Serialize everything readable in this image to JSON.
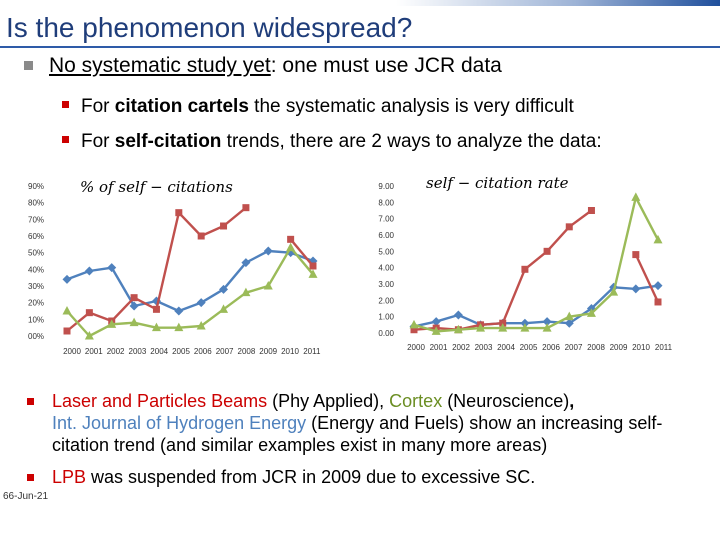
{
  "colors": {
    "title": "#1F3D7A",
    "accent_red": "#CC0000",
    "green": "#6B8E23",
    "blue": "#4F81BD",
    "red_series": "#C0504D",
    "green_series": "#9BBB59"
  },
  "slide": {
    "title": "Is the phenomenon widespread?",
    "bullet1": {
      "bold": "No systematic study yet",
      "rest": ": one must use JCR data"
    },
    "sub1": {
      "pre": "For ",
      "bold": "citation cartels",
      "rest": " the systematic analysis is very difficult"
    },
    "sub2": {
      "pre": "For ",
      "bold": "self-citation",
      "rest": "  trends, there are 2 ways to analyze the data:"
    },
    "bullet2": {
      "p1": "Laser and Particles Beams",
      "p2": " (Phy Applied), ",
      "p3": "Cortex",
      "p4": " (Neuroscience)",
      "p5": ",",
      "p6": "Int. Journal of Hydrogen Energy",
      "p7": " (Energy and Fuels) show an increasing self-citation trend (and similar examples exist in many more areas)"
    },
    "bullet3": {
      "p1": "LPB",
      "p2": " was suspended from JCR in 2009 due to excessive SC."
    },
    "date": "66-Jun-21"
  },
  "chart_data": [
    {
      "type": "line",
      "title": "% of self − citations",
      "x": [
        "2000",
        "2001",
        "2002",
        "2003",
        "2004",
        "2005",
        "2006",
        "2007",
        "2008",
        "2009",
        "2010",
        "2011"
      ],
      "ylim": [
        0,
        90
      ],
      "yticks": [
        "00%",
        "10%",
        "20%",
        "30%",
        "40%",
        "50%",
        "60%",
        "70%",
        "80%",
        "90%"
      ],
      "grid": false,
      "series": [
        {
          "color": "#4F81BD",
          "marker": "diamond",
          "values": [
            34,
            39,
            41,
            18,
            21,
            15,
            20,
            28,
            44,
            51,
            50,
            45
          ]
        },
        {
          "color": "#C0504D",
          "marker": "square",
          "values": [
            3,
            14,
            9,
            23,
            16,
            74,
            60,
            66,
            77,
            null,
            58,
            42
          ]
        },
        {
          "color": "#9BBB59",
          "marker": "triangle",
          "values": [
            15,
            0,
            7,
            8,
            5,
            5,
            6,
            16,
            26,
            30,
            53,
            37
          ]
        }
      ]
    },
    {
      "type": "line",
      "title": "self − citation rate",
      "x": [
        "2000",
        "2001",
        "2002",
        "2003",
        "2004",
        "2005",
        "2006",
        "2007",
        "2008",
        "2009",
        "2010",
        "2011"
      ],
      "ylim": [
        0,
        9
      ],
      "yticks": [
        "0.00",
        "1.00",
        "2.00",
        "3.00",
        "4.00",
        "5.00",
        "6.00",
        "7.00",
        "8.00",
        "9.00"
      ],
      "grid": false,
      "series": [
        {
          "color": "#4F81BD",
          "marker": "diamond",
          "values": [
            0.4,
            0.7,
            1.1,
            0.5,
            0.6,
            0.6,
            0.7,
            0.6,
            1.5,
            2.8,
            2.7,
            2.9
          ]
        },
        {
          "color": "#C0504D",
          "marker": "square",
          "values": [
            0.2,
            0.3,
            0.2,
            0.5,
            0.6,
            3.9,
            5.0,
            6.5,
            7.5,
            null,
            4.8,
            1.9
          ]
        },
        {
          "color": "#9BBB59",
          "marker": "triangle",
          "values": [
            0.5,
            0.1,
            0.2,
            0.3,
            0.3,
            0.3,
            0.3,
            1.0,
            1.2,
            2.5,
            8.3,
            5.7
          ]
        }
      ]
    }
  ]
}
